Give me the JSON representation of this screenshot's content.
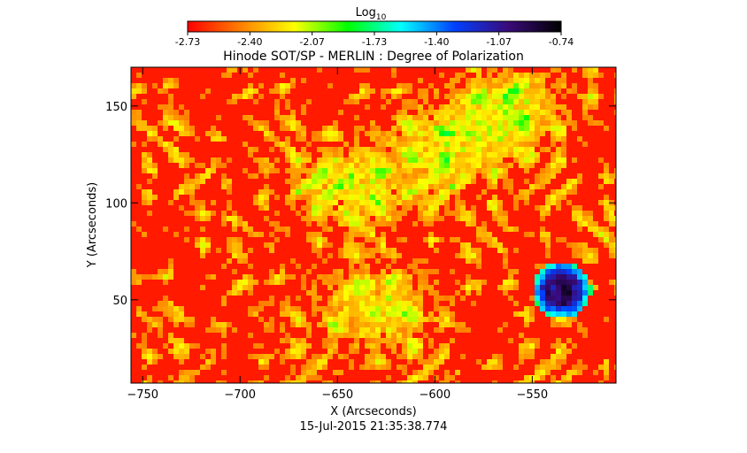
{
  "colorbar": {
    "label": "Log10",
    "label_base": "Log",
    "label_sub": "10",
    "ticks": [
      "-2.73",
      "-2.40",
      "-2.07",
      "-1.73",
      "-1.40",
      "-1.07",
      "-0.74"
    ],
    "range": [
      -2.73,
      -0.74
    ],
    "colormap": [
      "#ff0000",
      "#ff8000",
      "#ffff00",
      "#00ff00",
      "#00ffff",
      "#0040ff",
      "#3a0a7a",
      "#000000"
    ]
  },
  "chart_data": {
    "type": "heatmap",
    "title": "Hinode SOT/SP - MERLIN : Degree of Polarization",
    "xlabel": "X (Arcseconds)",
    "ylabel": "Y (Arcseconds)",
    "xlim": [
      -756,
      -507
    ],
    "ylim": [
      7,
      170
    ],
    "x_ticks": [
      -750,
      -700,
      -650,
      -600,
      -550
    ],
    "y_ticks": [
      50,
      100,
      150
    ],
    "x_tick_labels": [
      "−750",
      "−700",
      "−650",
      "−600",
      "−550"
    ],
    "y_tick_labels": [
      "50",
      "100",
      "150"
    ],
    "value_scale": "log10",
    "features": {
      "sunspot_center": [
        -535,
        55
      ],
      "plage_centers": [
        [
          -640,
          110
        ],
        [
          -590,
          130
        ],
        [
          -630,
          45
        ],
        [
          -560,
          150
        ]
      ]
    }
  },
  "timestamp": "15-Jul-2015 21:35:38.774"
}
